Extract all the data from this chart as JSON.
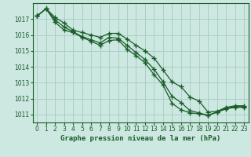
{
  "xlabel": "Graphe pression niveau de la mer (hPa)",
  "background_color": "#cce8e0",
  "grid_color": "#aacfc8",
  "line_color": "#1a5c2a",
  "x_values": [
    0,
    1,
    2,
    3,
    4,
    5,
    6,
    7,
    8,
    9,
    10,
    11,
    12,
    13,
    14,
    15,
    16,
    17,
    18,
    19,
    20,
    21,
    22,
    23
  ],
  "line1": [
    1017.2,
    1017.65,
    1017.1,
    1016.75,
    1016.3,
    1016.15,
    1016.0,
    1015.85,
    1016.1,
    1016.1,
    1015.75,
    1015.35,
    1015.0,
    1014.55,
    1013.8,
    1013.05,
    1012.75,
    1012.1,
    1011.85,
    1011.15,
    1011.2,
    1011.45,
    1011.55,
    1011.55
  ],
  "line2": [
    1017.2,
    1017.65,
    1016.95,
    1016.5,
    1016.2,
    1015.9,
    1015.7,
    1015.5,
    1015.85,
    1015.8,
    1015.35,
    1014.9,
    1014.45,
    1013.85,
    1013.05,
    1012.15,
    1011.75,
    1011.25,
    1011.1,
    1010.95,
    1011.15,
    1011.4,
    1011.5,
    1011.5
  ],
  "line3": [
    1017.2,
    1017.65,
    1016.8,
    1016.3,
    1016.15,
    1015.85,
    1015.6,
    1015.35,
    1015.65,
    1015.7,
    1015.1,
    1014.7,
    1014.25,
    1013.5,
    1012.85,
    1011.7,
    1011.3,
    1011.1,
    1011.05,
    1010.95,
    1011.15,
    1011.35,
    1011.45,
    1011.45
  ],
  "ylim": [
    1010.5,
    1018.0
  ],
  "yticks": [
    1011,
    1012,
    1013,
    1014,
    1015,
    1016,
    1017
  ],
  "xticks": [
    0,
    1,
    2,
    3,
    4,
    5,
    6,
    7,
    8,
    9,
    10,
    11,
    12,
    13,
    14,
    15,
    16,
    17,
    18,
    19,
    20,
    21,
    22,
    23
  ],
  "tick_fontsize": 5.5,
  "xlabel_fontsize": 6.5
}
